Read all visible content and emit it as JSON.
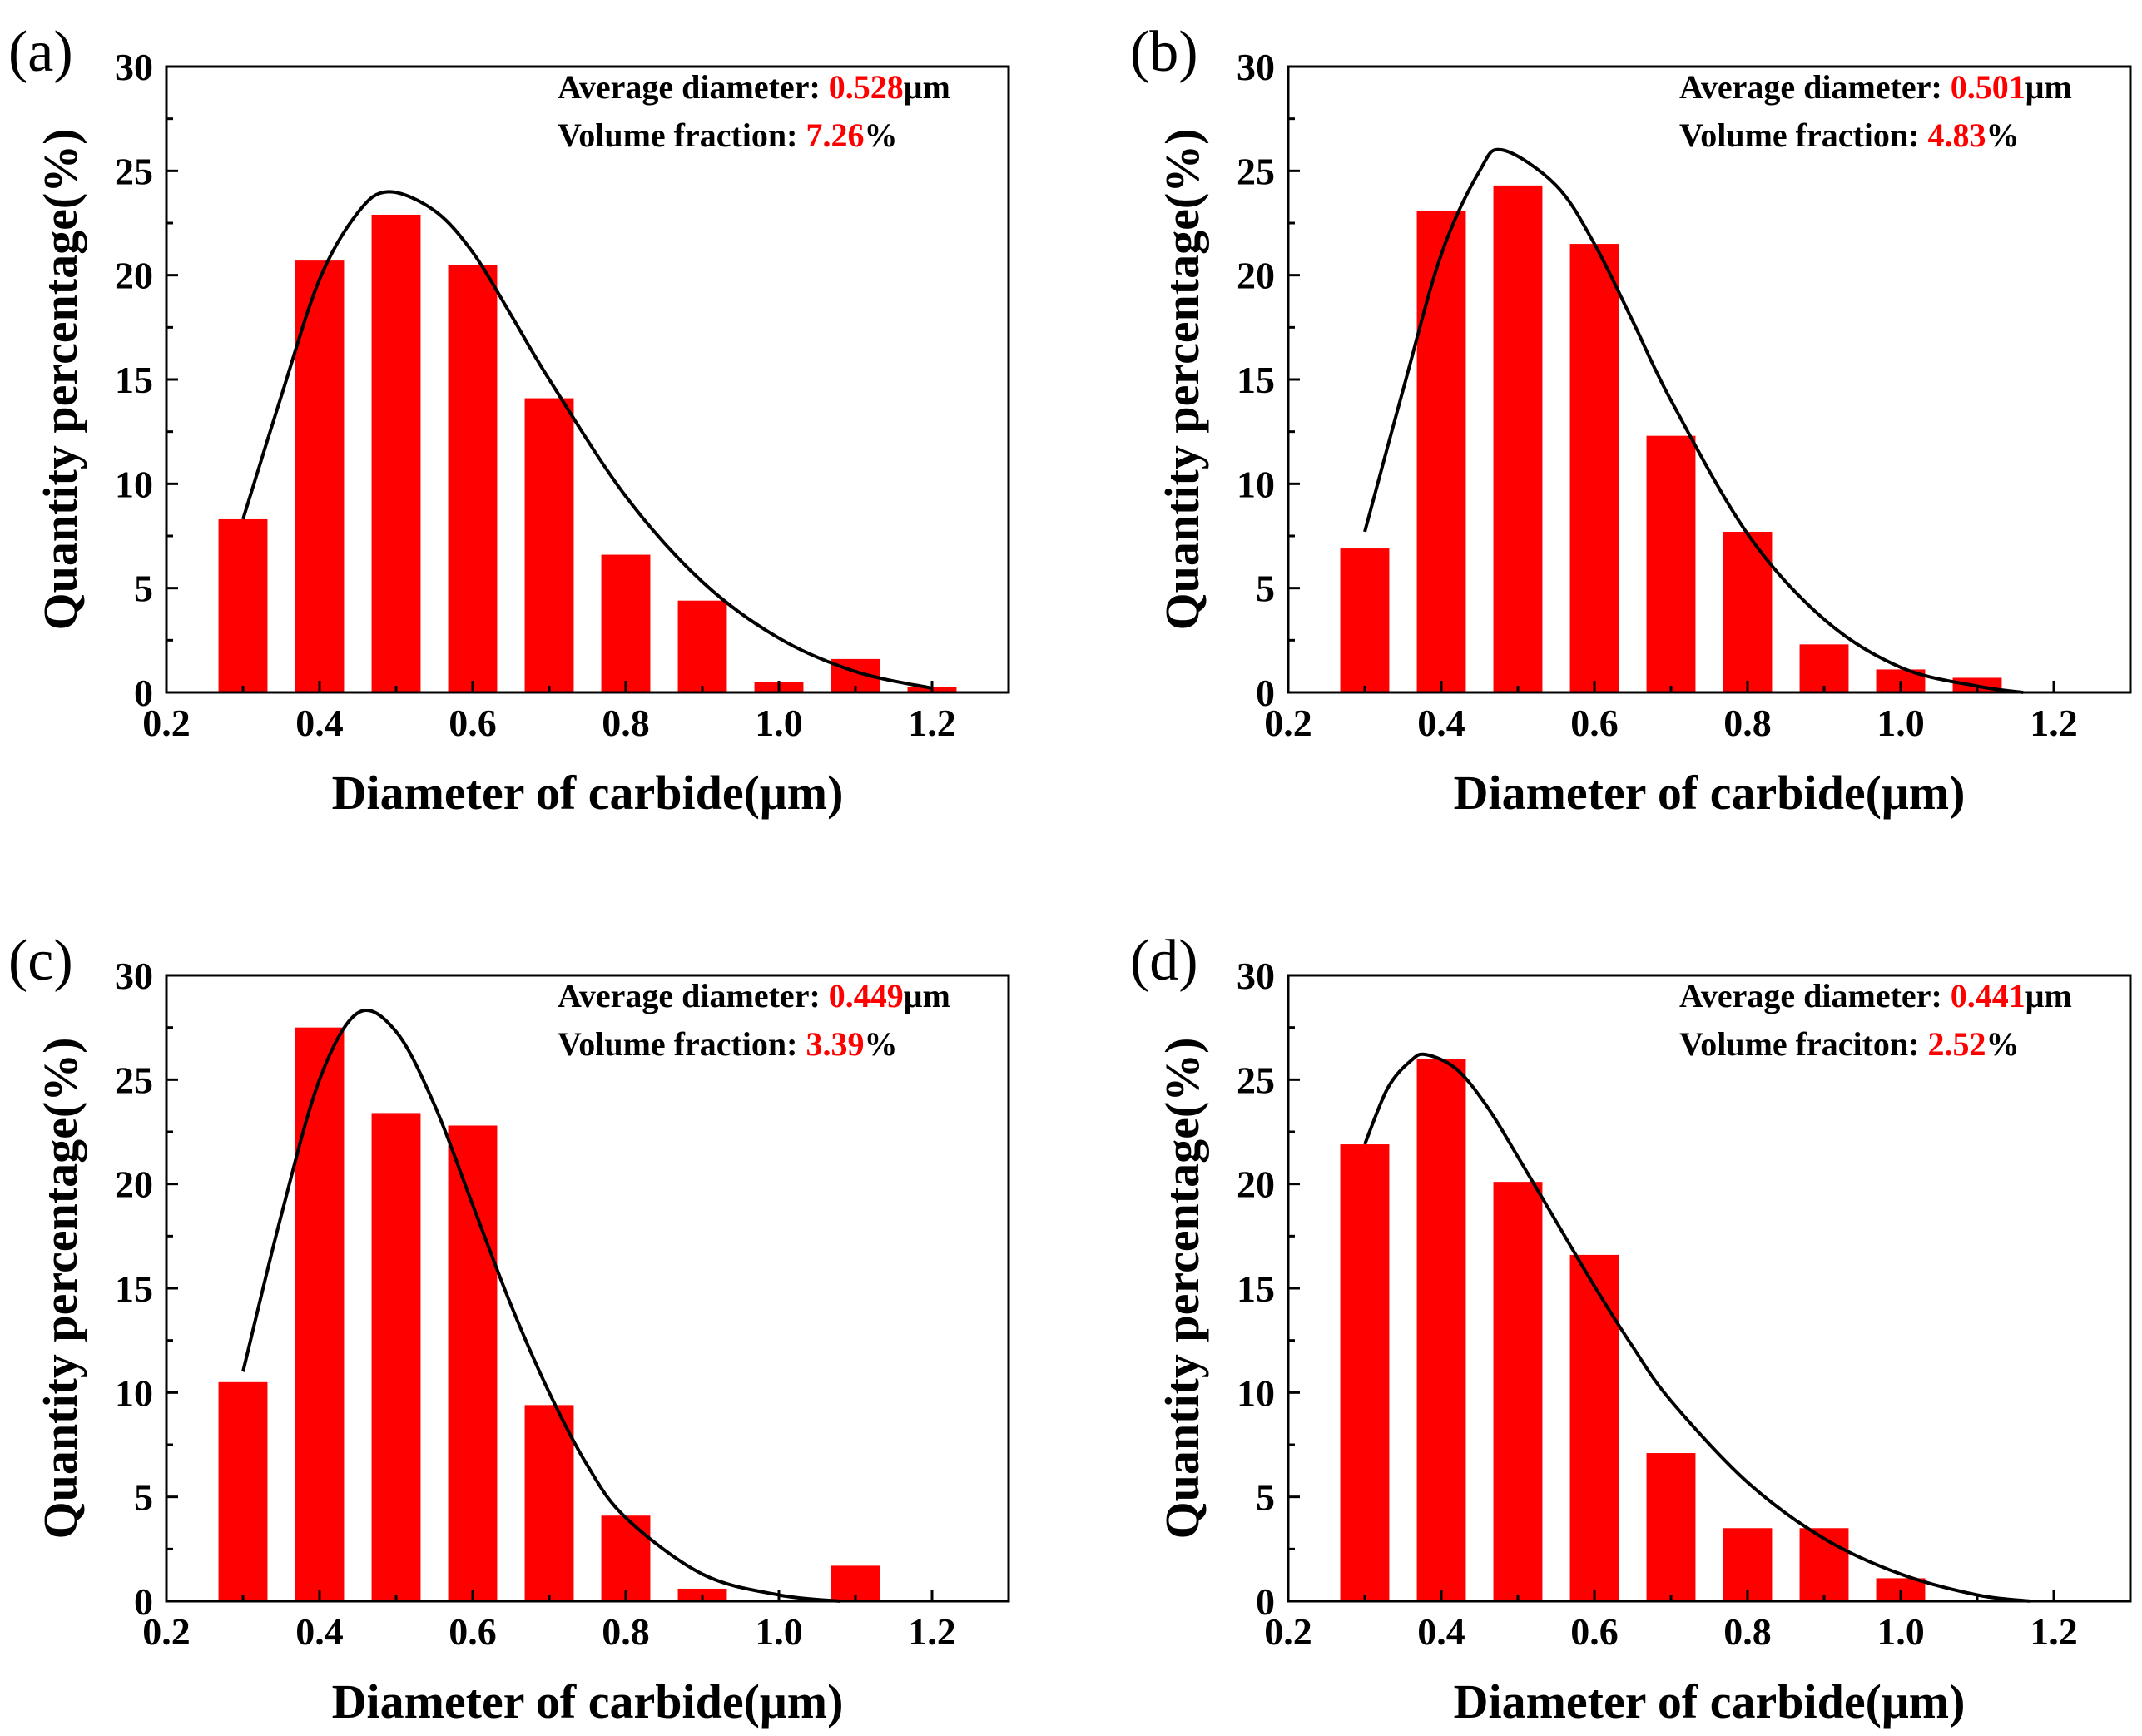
{
  "colors": {
    "bar": "#ff0000",
    "fit_line": "#000000",
    "highlight": "#ff0000",
    "axis": "#000000"
  },
  "chart_data": [
    {
      "panel": "(a)",
      "type": "bar",
      "overlay": "fitted distribution curve",
      "xlabel": "Diameter of carbide(μm)",
      "ylabel": "Quantity percentage(%)",
      "xlim": [
        0.2,
        1.3
      ],
      "ylim": [
        0,
        30
      ],
      "xticks": [
        "0.2",
        "0.4",
        "0.6",
        "0.8",
        "1.0",
        "1.2"
      ],
      "yticks": [
        "0",
        "5",
        "10",
        "15",
        "20",
        "25",
        "30"
      ],
      "x": [
        0.3,
        0.4,
        0.5,
        0.6,
        0.7,
        0.8,
        0.9,
        1.0,
        1.1,
        1.2
      ],
      "values": [
        8.3,
        20.7,
        22.9,
        20.5,
        14.1,
        6.6,
        4.4,
        0.5,
        1.6,
        0.25
      ],
      "curve": {
        "x": [
          0.3,
          0.35,
          0.4,
          0.45,
          0.49,
          0.55,
          0.6,
          0.65,
          0.7,
          0.8,
          0.9,
          1.0,
          1.1,
          1.2
        ],
        "y": [
          8.3,
          14.2,
          19.8,
          23.0,
          24.0,
          23.1,
          21.1,
          18.1,
          15.0,
          9.4,
          5.3,
          2.6,
          1.0,
          0.2
        ]
      },
      "annotations": [
        {
          "label": "Average diameter: ",
          "value": "0.528",
          "unit": "μm"
        },
        {
          "label": "Volume fraction: ",
          "value": "7.26",
          "unit": "%"
        }
      ]
    },
    {
      "panel": "(b)",
      "type": "bar",
      "overlay": "fitted distribution curve",
      "xlabel": "Diameter of carbide(μm)",
      "ylabel": "Quantity percentage(%)",
      "xlim": [
        0.2,
        1.3
      ],
      "ylim": [
        0,
        30
      ],
      "xticks": [
        "0.2",
        "0.4",
        "0.6",
        "0.8",
        "1.0",
        "1.2"
      ],
      "yticks": [
        "0",
        "5",
        "10",
        "15",
        "20",
        "25",
        "30"
      ],
      "x": [
        0.3,
        0.4,
        0.5,
        0.6,
        0.7,
        0.8,
        0.9,
        1.0,
        1.1
      ],
      "values": [
        6.9,
        23.1,
        24.3,
        21.5,
        12.3,
        7.7,
        2.3,
        1.1,
        0.7
      ],
      "curve": {
        "x": [
          0.3,
          0.35,
          0.4,
          0.45,
          0.48,
          0.55,
          0.6,
          0.65,
          0.7,
          0.8,
          0.9,
          1.0,
          1.1,
          1.16
        ],
        "y": [
          7.7,
          14.5,
          21.0,
          25.0,
          26.0,
          24.3,
          21.5,
          17.8,
          14.0,
          7.6,
          3.5,
          1.2,
          0.3,
          0.0
        ]
      },
      "annotations": [
        {
          "label": "Average diameter: ",
          "value": "0.501",
          "unit": "μm"
        },
        {
          "label": "Volume fraction: ",
          "value": "4.83",
          "unit": "%"
        }
      ]
    },
    {
      "panel": "(c)",
      "type": "bar",
      "overlay": "fitted distribution curve",
      "xlabel": "Diameter of carbide(μm)",
      "ylabel": "Quantity percentage(%)",
      "xlim": [
        0.2,
        1.3
      ],
      "ylim": [
        0,
        30
      ],
      "xticks": [
        "0.2",
        "0.4",
        "0.6",
        "0.8",
        "1.0",
        "1.2"
      ],
      "yticks": [
        "0",
        "5",
        "10",
        "15",
        "20",
        "25",
        "30"
      ],
      "x": [
        0.3,
        0.4,
        0.5,
        0.6,
        0.7,
        0.8,
        0.9,
        1.1
      ],
      "values": [
        10.5,
        27.5,
        23.4,
        22.8,
        9.4,
        4.1,
        0.6,
        1.7
      ],
      "curve": {
        "x": [
          0.3,
          0.35,
          0.4,
          0.45,
          0.5,
          0.55,
          0.6,
          0.65,
          0.7,
          0.75,
          0.8,
          0.9,
          1.0,
          1.08
        ],
        "y": [
          11.0,
          18.5,
          25.0,
          28.2,
          27.3,
          23.8,
          19.0,
          14.2,
          10.0,
          6.5,
          4.0,
          1.3,
          0.3,
          0.0
        ]
      },
      "annotations": [
        {
          "label": "Average diameter: ",
          "value": "0.449",
          "unit": "μm"
        },
        {
          "label": "Volume fraction: ",
          "value": "3.39",
          "unit": "%"
        }
      ]
    },
    {
      "panel": "(d)",
      "type": "bar",
      "overlay": "fitted distribution curve",
      "xlabel": "Diameter of carbide(μm)",
      "ylabel": "Quantity percentage(%)",
      "xlim": [
        0.2,
        1.3
      ],
      "ylim": [
        0,
        30
      ],
      "xticks": [
        "0.2",
        "0.4",
        "0.6",
        "0.8",
        "1.0",
        "1.2"
      ],
      "yticks": [
        "0",
        "5",
        "10",
        "15",
        "20",
        "25",
        "30"
      ],
      "x": [
        0.3,
        0.4,
        0.5,
        0.6,
        0.7,
        0.8,
        0.9,
        1.0
      ],
      "values": [
        21.9,
        26.0,
        20.1,
        16.6,
        7.1,
        3.5,
        3.5,
        1.1
      ],
      "curve": {
        "x": [
          0.3,
          0.33,
          0.36,
          0.38,
          0.42,
          0.46,
          0.5,
          0.55,
          0.6,
          0.65,
          0.7,
          0.8,
          0.9,
          1.0,
          1.1,
          1.17
        ],
        "y": [
          21.9,
          24.6,
          25.9,
          26.2,
          25.5,
          23.7,
          21.3,
          18.2,
          15.1,
          12.2,
          9.6,
          5.7,
          3.0,
          1.3,
          0.3,
          0.0
        ]
      },
      "annotations": [
        {
          "label": "Average diameter: ",
          "value": "0.441",
          "unit": "μm"
        },
        {
          "label": "Volume fraciton: ",
          "value": "2.52",
          "unit": "%"
        }
      ]
    }
  ]
}
